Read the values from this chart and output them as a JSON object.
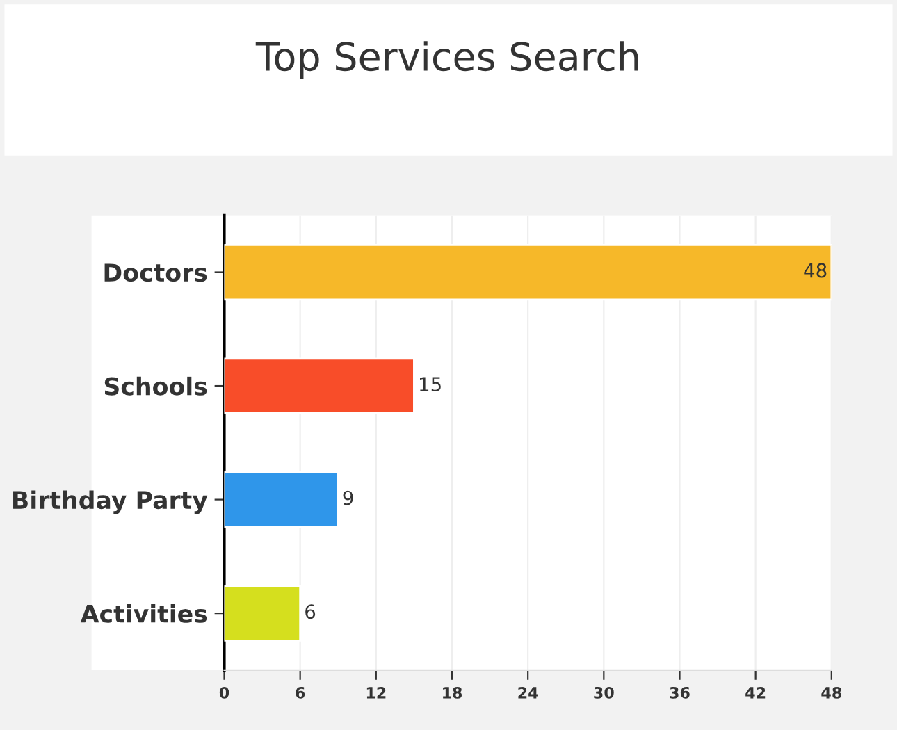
{
  "chart_data": {
    "type": "bar",
    "orientation": "horizontal",
    "title": "Top Services Search",
    "categories": [
      "Doctors",
      "Schools",
      "Birthday Party",
      "Activities"
    ],
    "values": [
      48,
      15,
      9,
      6
    ],
    "colors": [
      "#f6b829",
      "#f84d29",
      "#2f96ea",
      "#d5df1e"
    ],
    "xlim": [
      0,
      48
    ],
    "xticks": [
      0,
      6,
      12,
      18,
      24,
      30,
      36,
      42,
      48
    ],
    "grid": "x",
    "data_labels": true
  }
}
